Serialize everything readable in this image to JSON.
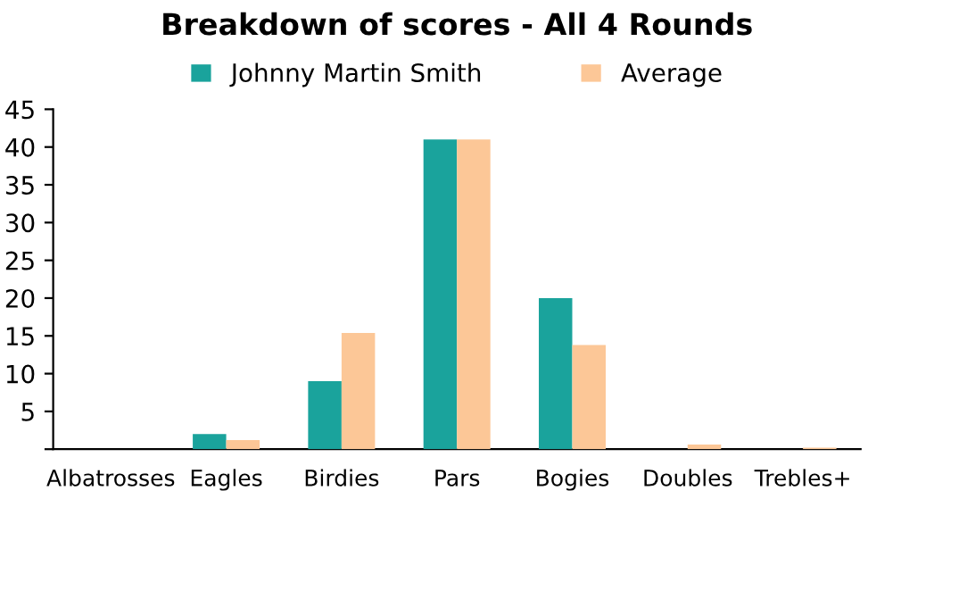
{
  "chart_data": {
    "type": "bar",
    "title": "Breakdown of scores - All 4 Rounds",
    "categories": [
      "Albatrosses",
      "Eagles",
      "Birdies",
      "Pars",
      "Bogies",
      "Doubles",
      "Trebles+"
    ],
    "series": [
      {
        "name": "Johnny Martin Smith",
        "color": "#1aa39c",
        "values": [
          0,
          2,
          9,
          41,
          20,
          0,
          0
        ]
      },
      {
        "name": "Average",
        "color": "#fcc797",
        "values": [
          0,
          1.2,
          15.4,
          41,
          13.8,
          0.6,
          0.2
        ]
      }
    ],
    "ylim": [
      0,
      45
    ],
    "yticks": [
      {
        "value": 0,
        "label": null
      },
      5,
      10,
      15,
      20,
      25,
      30,
      35,
      40,
      45
    ],
    "grid": false,
    "legend": "top"
  }
}
